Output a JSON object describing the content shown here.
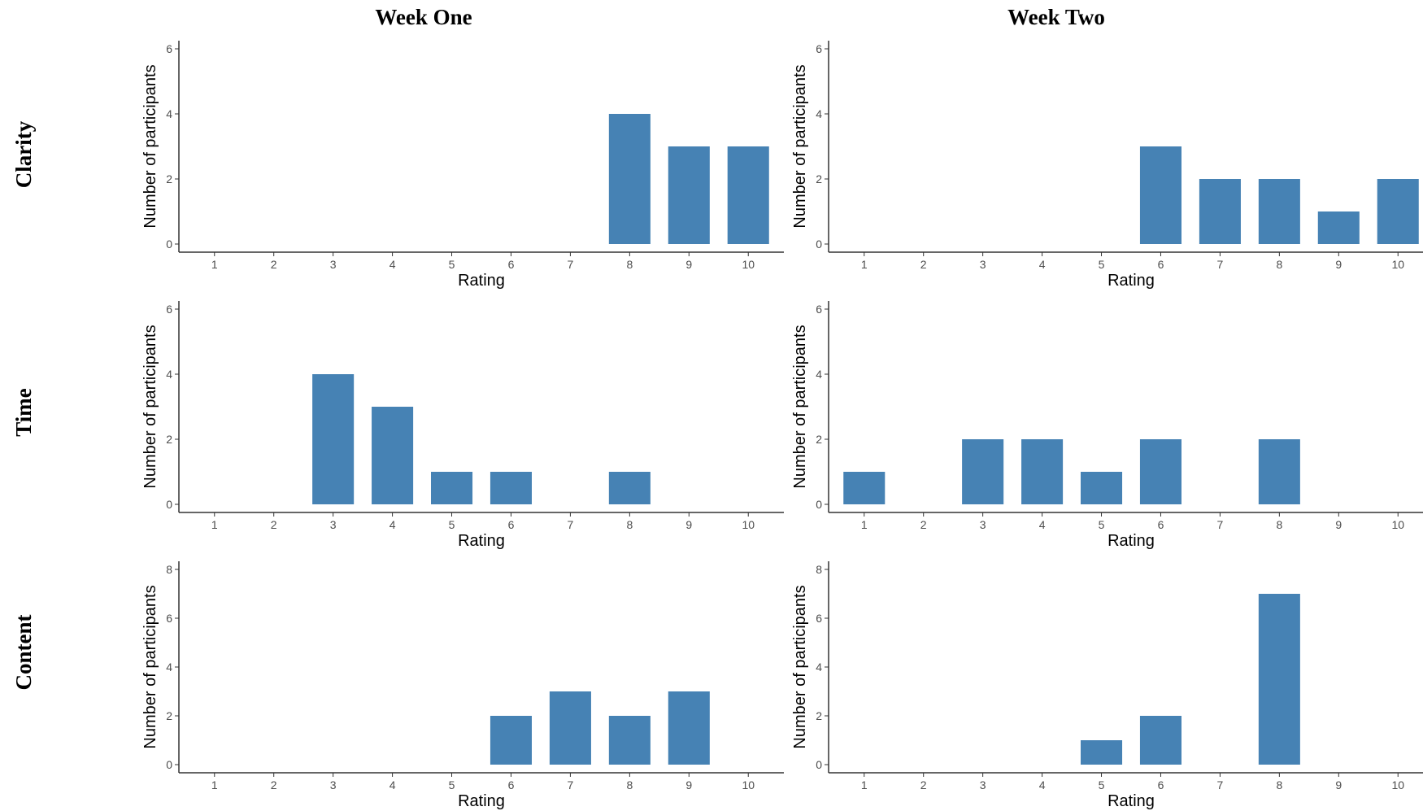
{
  "column_headers": [
    "Week One",
    "Week Two"
  ],
  "row_headers": [
    "Clarity",
    "Time",
    "Content"
  ],
  "colors": {
    "bar": "#4682b4",
    "axis": "#333333",
    "text": "#4d4d4d"
  },
  "chart_data": [
    {
      "type": "bar",
      "row": "Clarity",
      "column": "Week One",
      "xlabel": "Rating",
      "ylabel": "Number of participants",
      "categories": [
        "1",
        "2",
        "3",
        "4",
        "5",
        "6",
        "7",
        "8",
        "9",
        "10"
      ],
      "values": [
        0,
        0,
        0,
        0,
        0,
        0,
        0,
        4,
        3,
        3
      ],
      "ylim": [
        0,
        6
      ],
      "yticks": [
        0,
        2,
        4,
        6
      ],
      "grid": false,
      "legend": "none"
    },
    {
      "type": "bar",
      "row": "Clarity",
      "column": "Week Two",
      "xlabel": "Rating",
      "ylabel": "Number of participants",
      "categories": [
        "1",
        "2",
        "3",
        "4",
        "5",
        "6",
        "7",
        "8",
        "9",
        "10"
      ],
      "values": [
        0,
        0,
        0,
        0,
        0,
        3,
        2,
        2,
        1,
        2
      ],
      "ylim": [
        0,
        6
      ],
      "yticks": [
        0,
        2,
        4,
        6
      ],
      "grid": false,
      "legend": "none"
    },
    {
      "type": "bar",
      "row": "Time",
      "column": "Week One",
      "xlabel": "Rating",
      "ylabel": "Number of participants",
      "categories": [
        "1",
        "2",
        "3",
        "4",
        "5",
        "6",
        "7",
        "8",
        "9",
        "10"
      ],
      "values": [
        0,
        0,
        4,
        3,
        1,
        1,
        0,
        1,
        0,
        0
      ],
      "ylim": [
        0,
        6
      ],
      "yticks": [
        0,
        2,
        4,
        6
      ],
      "grid": false,
      "legend": "none"
    },
    {
      "type": "bar",
      "row": "Time",
      "column": "Week Two",
      "xlabel": "Rating",
      "ylabel": "Number of participants",
      "categories": [
        "1",
        "2",
        "3",
        "4",
        "5",
        "6",
        "7",
        "8",
        "9",
        "10"
      ],
      "values": [
        1,
        0,
        2,
        2,
        1,
        2,
        0,
        2,
        0,
        0
      ],
      "ylim": [
        0,
        6
      ],
      "yticks": [
        0,
        2,
        4,
        6
      ],
      "grid": false,
      "legend": "none"
    },
    {
      "type": "bar",
      "row": "Content",
      "column": "Week One",
      "xlabel": "Rating",
      "ylabel": "Number of participants",
      "categories": [
        "1",
        "2",
        "3",
        "4",
        "5",
        "6",
        "7",
        "8",
        "9",
        "10"
      ],
      "values": [
        0,
        0,
        0,
        0,
        0,
        2,
        3,
        2,
        3,
        0
      ],
      "ylim": [
        0,
        8
      ],
      "yticks": [
        0,
        2,
        4,
        6,
        8
      ],
      "grid": false,
      "legend": "none"
    },
    {
      "type": "bar",
      "row": "Content",
      "column": "Week Two",
      "xlabel": "Rating",
      "ylabel": "Number of participants",
      "categories": [
        "1",
        "2",
        "3",
        "4",
        "5",
        "6",
        "7",
        "8",
        "9",
        "10"
      ],
      "values": [
        0,
        0,
        0,
        0,
        1,
        2,
        0,
        7,
        0,
        0
      ],
      "ylim": [
        0,
        8
      ],
      "yticks": [
        0,
        2,
        4,
        6,
        8
      ],
      "grid": false,
      "legend": "none"
    }
  ]
}
